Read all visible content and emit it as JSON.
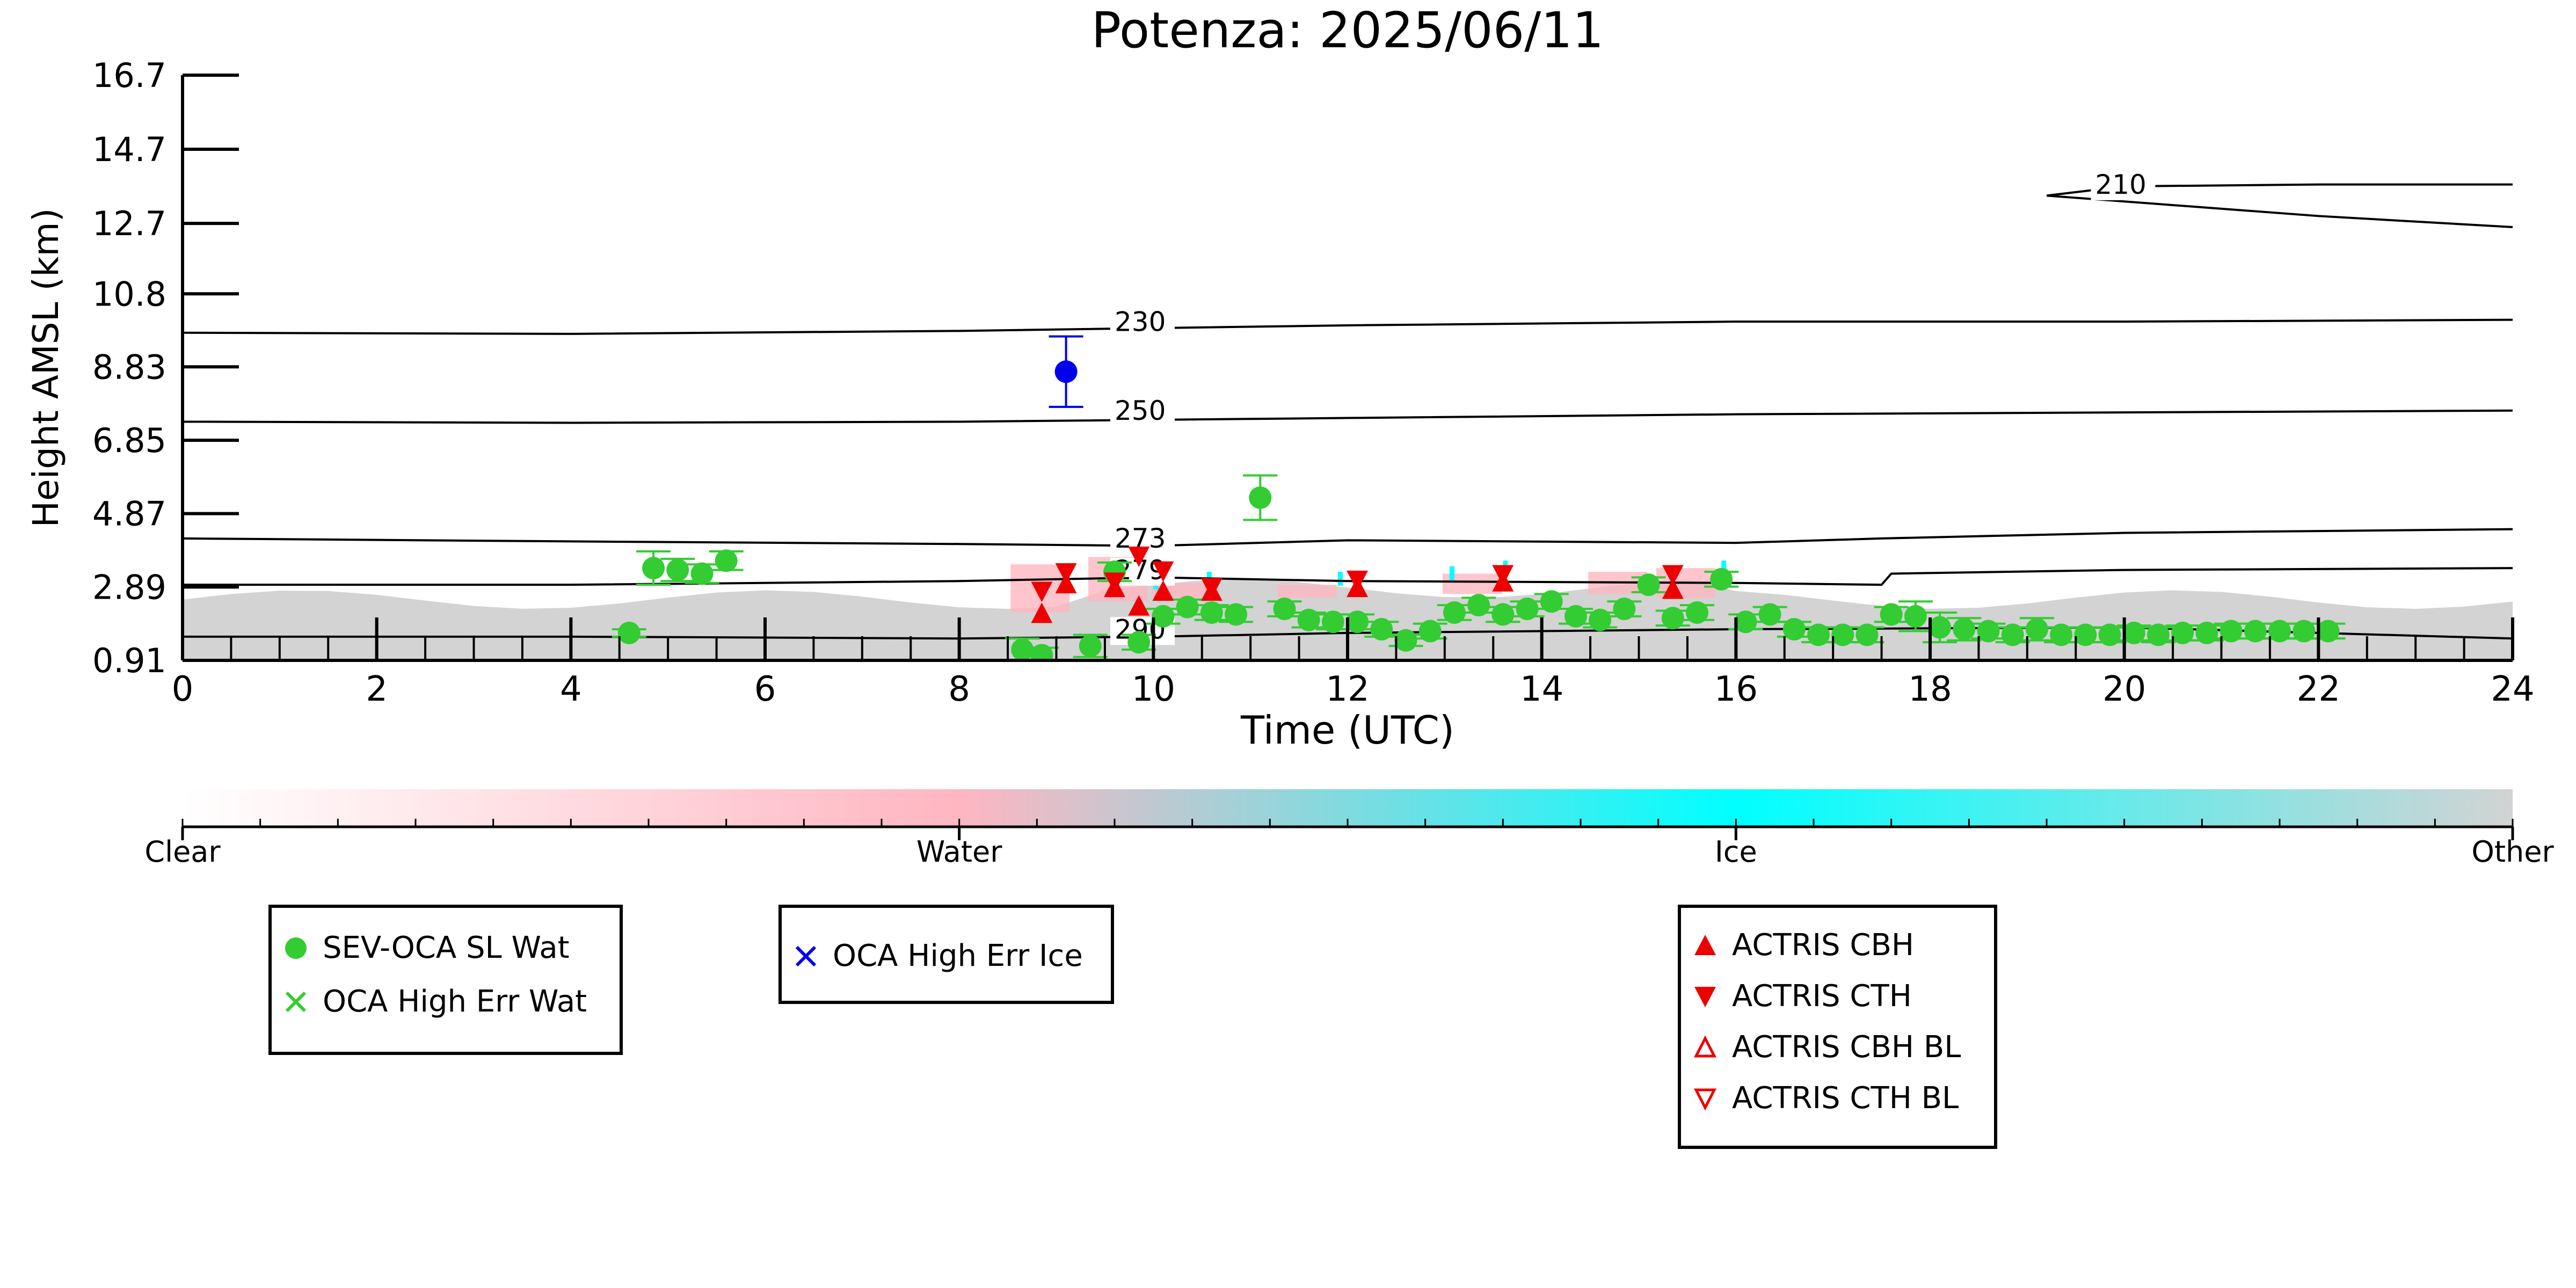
{
  "colors": {
    "green": "#33cc33",
    "blue": "#0000ee",
    "red": "#ee0000",
    "cyan": "#00ffff",
    "pink": "#ffb6c1",
    "grey": "#d3d3d3",
    "black": "#000000"
  },
  "chart_data": {
    "type": "scatter",
    "title": "Potenza: 2025/06/11",
    "xlabel": "Time (UTC)",
    "ylabel": "Height AMSL (km)",
    "xlim": [
      0,
      24
    ],
    "ylim": [
      0.91,
      16.7
    ],
    "xticks": [
      "0",
      "2",
      "4",
      "6",
      "8",
      "10",
      "12",
      "14",
      "16",
      "18",
      "20",
      "22",
      "24"
    ],
    "yticks": [
      "0.91",
      "2.89",
      "4.87",
      "6.85",
      "8.83",
      "10.8",
      "12.7",
      "14.7",
      "16.7"
    ],
    "isotherms": [
      {
        "label": "210",
        "label_x": 19.7,
        "label_y": 13.5,
        "points": [
          [
            19.2,
            13.45
          ],
          [
            20.0,
            13.7
          ],
          [
            22,
            13.75
          ],
          [
            24,
            13.75
          ]
        ],
        "lower": [
          [
            19.2,
            13.45
          ],
          [
            22,
            12.9
          ],
          [
            24,
            12.6
          ]
        ]
      },
      {
        "label": "230",
        "label_x": 9.6,
        "label_y": 9.8,
        "points": [
          [
            0,
            9.75
          ],
          [
            4,
            9.72
          ],
          [
            8,
            9.8
          ],
          [
            12,
            9.95
          ],
          [
            16,
            10.05
          ],
          [
            20,
            10.05
          ],
          [
            24,
            10.1
          ]
        ]
      },
      {
        "label": "250",
        "label_x": 9.6,
        "label_y": 7.4,
        "points": [
          [
            0,
            7.35
          ],
          [
            4,
            7.32
          ],
          [
            8,
            7.35
          ],
          [
            12,
            7.45
          ],
          [
            16,
            7.55
          ],
          [
            20,
            7.6
          ],
          [
            24,
            7.65
          ]
        ]
      },
      {
        "label": "273",
        "label_x": 9.6,
        "label_y": 3.95,
        "points": [
          [
            0,
            4.2
          ],
          [
            4,
            4.12
          ],
          [
            8,
            4.05
          ],
          [
            10,
            4.0
          ],
          [
            12,
            4.15
          ],
          [
            16,
            4.08
          ],
          [
            17.5,
            4.2
          ],
          [
            20,
            4.35
          ],
          [
            24,
            4.45
          ]
        ]
      },
      {
        "label": "279",
        "label_x": 9.6,
        "label_y": 3.1,
        "points": [
          [
            0,
            2.95
          ],
          [
            4,
            2.95
          ],
          [
            8,
            3.05
          ],
          [
            10,
            3.15
          ],
          [
            12,
            3.05
          ],
          [
            16,
            3.0
          ],
          [
            17.5,
            2.95
          ],
          [
            17.6,
            3.25
          ],
          [
            20,
            3.35
          ],
          [
            24,
            3.4
          ]
        ]
      },
      {
        "label": "290",
        "label_x": 9.6,
        "label_y": 1.5,
        "points": [
          [
            0,
            1.55
          ],
          [
            4,
            1.55
          ],
          [
            8,
            1.5
          ],
          [
            10,
            1.55
          ],
          [
            12,
            1.65
          ],
          [
            16,
            1.75
          ],
          [
            20,
            1.8
          ],
          [
            24,
            1.5
          ]
        ]
      }
    ],
    "series": [
      {
        "name": "SEV-OCA SL Wat",
        "marker": "circle",
        "color": "#33cc33",
        "points": [
          [
            4.6,
            1.65,
            0.1
          ],
          [
            4.85,
            3.4,
            0.45
          ],
          [
            5.1,
            3.35,
            0.3
          ],
          [
            5.35,
            3.25,
            0.25
          ],
          [
            5.6,
            3.6,
            0.25
          ],
          [
            8.65,
            1.2,
            0.3
          ],
          [
            8.85,
            1.05,
            0.2
          ],
          [
            9.35,
            1.3,
            0.3
          ],
          [
            9.6,
            3.3,
            0.25
          ],
          [
            9.85,
            1.4,
            0.2
          ],
          [
            10.1,
            2.1,
            0.2
          ],
          [
            10.35,
            2.35,
            0.2
          ],
          [
            10.6,
            2.2,
            0.2
          ],
          [
            10.85,
            2.15,
            0.2
          ],
          [
            11.1,
            5.3,
            0.6
          ],
          [
            11.35,
            2.3,
            0.2
          ],
          [
            11.6,
            2.0,
            0.2
          ],
          [
            11.85,
            1.95,
            0.2
          ],
          [
            12.1,
            1.95,
            0.2
          ],
          [
            12.35,
            1.75,
            0.2
          ],
          [
            12.6,
            1.45,
            0.15
          ],
          [
            12.85,
            1.7,
            0.2
          ],
          [
            13.1,
            2.2,
            0.2
          ],
          [
            13.35,
            2.4,
            0.2
          ],
          [
            13.6,
            2.15,
            0.2
          ],
          [
            13.85,
            2.3,
            0.2
          ],
          [
            14.1,
            2.5,
            0.2
          ],
          [
            14.35,
            2.1,
            0.2
          ],
          [
            14.6,
            2.0,
            0.2
          ],
          [
            14.85,
            2.3,
            0.2
          ],
          [
            15.1,
            2.95,
            0.2
          ],
          [
            15.35,
            2.05,
            0.2
          ],
          [
            15.6,
            2.2,
            0.2
          ],
          [
            15.85,
            3.1,
            0.2
          ],
          [
            16.1,
            1.95,
            0.2
          ],
          [
            16.35,
            2.15,
            0.2
          ],
          [
            16.6,
            1.75,
            0.2
          ],
          [
            16.85,
            1.6,
            0.2
          ],
          [
            17.1,
            1.6,
            0.2
          ],
          [
            17.35,
            1.6,
            0.2
          ],
          [
            17.6,
            2.15,
            0.2
          ],
          [
            17.85,
            2.1,
            0.4
          ],
          [
            18.1,
            1.8,
            0.4
          ],
          [
            18.35,
            1.75,
            0.3
          ],
          [
            18.6,
            1.7,
            0.2
          ],
          [
            18.85,
            1.6,
            0.2
          ],
          [
            19.1,
            1.75,
            0.3
          ],
          [
            19.35,
            1.6,
            0.2
          ],
          [
            19.6,
            1.6,
            0.2
          ],
          [
            19.85,
            1.6,
            0.2
          ],
          [
            20.1,
            1.65,
            0.2
          ],
          [
            20.35,
            1.6,
            0.2
          ],
          [
            20.6,
            1.65,
            0.2
          ],
          [
            20.85,
            1.65,
            0.2
          ],
          [
            21.1,
            1.7,
            0.2
          ],
          [
            21.35,
            1.7,
            0.2
          ],
          [
            21.6,
            1.7,
            0.2
          ],
          [
            21.85,
            1.7,
            0.2
          ],
          [
            22.1,
            1.7,
            0.2
          ]
        ]
      },
      {
        "name": "OCA High Err Ice",
        "marker": "circle",
        "color": "#0000ee",
        "points": [
          [
            9.1,
            8.7,
            0.95
          ]
        ]
      },
      {
        "name": "ACTRIS CBH",
        "marker": "triangle-up",
        "color": "#ee0000",
        "points": [
          [
            8.85,
            2.15
          ],
          [
            9.1,
            2.95
          ],
          [
            9.6,
            2.85
          ],
          [
            9.85,
            2.35
          ],
          [
            10.1,
            2.75
          ],
          [
            10.6,
            2.75
          ],
          [
            12.1,
            2.85
          ],
          [
            13.6,
            3.0
          ],
          [
            15.35,
            2.8
          ]
        ]
      },
      {
        "name": "ACTRIS CTH",
        "marker": "triangle-down",
        "color": "#ee0000",
        "points": [
          [
            8.85,
            2.8
          ],
          [
            9.1,
            3.3
          ],
          [
            9.6,
            3.05
          ],
          [
            9.85,
            3.75
          ],
          [
            10.1,
            3.35
          ],
          [
            10.6,
            2.9
          ],
          [
            12.1,
            3.1
          ],
          [
            13.6,
            3.25
          ],
          [
            15.35,
            3.25
          ]
        ]
      }
    ],
    "colorbar": {
      "labels": [
        "Clear",
        "Water",
        "Ice",
        "Other"
      ],
      "stops": [
        "#ffffff",
        "#ffb6c1",
        "#00ffff",
        "#d3d3d3"
      ]
    }
  },
  "legends": {
    "box1": [
      {
        "label": "SEV-OCA SL Wat",
        "marker": "circle",
        "color": "#33cc33"
      },
      {
        "label": "OCA High Err Wat",
        "marker": "x",
        "color": "#33cc33"
      }
    ],
    "box2": [
      {
        "label": "OCA High Err Ice",
        "marker": "x",
        "color": "#0000ee"
      }
    ],
    "box3": [
      {
        "label": "ACTRIS CBH",
        "marker": "triangle-up",
        "color": "#ee0000"
      },
      {
        "label": "ACTRIS CTH",
        "marker": "triangle-down",
        "color": "#ee0000"
      },
      {
        "label": "ACTRIS CBH BL",
        "marker": "triangle-up-open",
        "color": "#ee0000"
      },
      {
        "label": "ACTRIS CTH BL",
        "marker": "triangle-down-open",
        "color": "#ee0000"
      }
    ]
  }
}
